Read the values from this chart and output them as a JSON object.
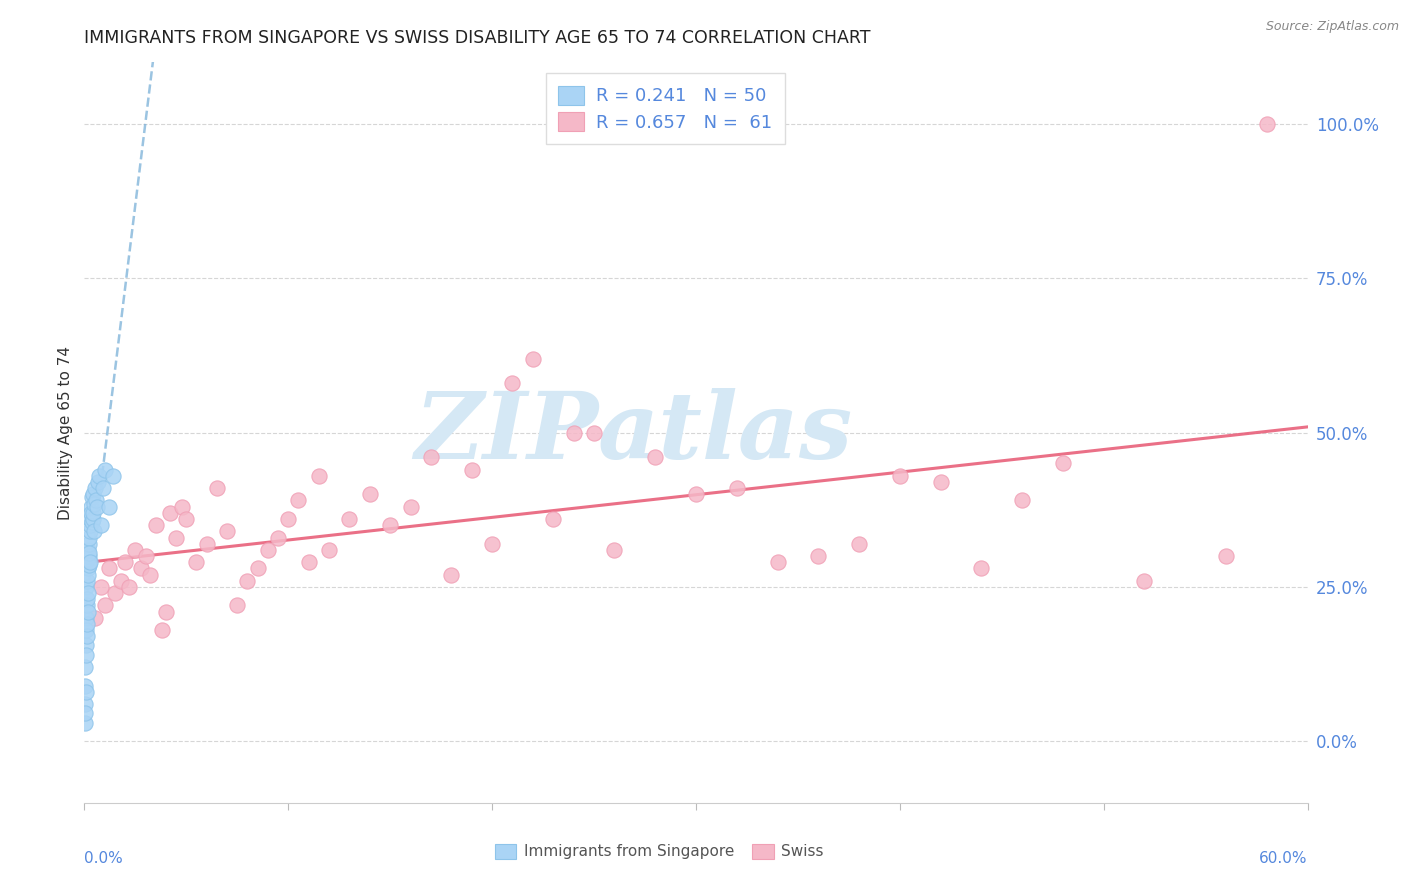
{
  "title": "IMMIGRANTS FROM SINGAPORE VS SWISS DISABILITY AGE 65 TO 74 CORRELATION CHART",
  "source": "Source: ZipAtlas.com",
  "legend_label1": "Immigrants from Singapore",
  "legend_label2": "Swiss",
  "R1": 0.241,
  "N1": 50,
  "R2": 0.657,
  "N2": 61,
  "color1": "#8ec4ea",
  "color1_fill": "#aad4f5",
  "color2": "#f0a0b5",
  "color2_fill": "#f5b8c8",
  "trendline1_color": "#7ab0d8",
  "trendline2_color": "#e8607a",
  "axis_label_color": "#5588dd",
  "right_ytick_color": "#5588dd",
  "right_yticks": [
    0.0,
    0.25,
    0.5,
    0.75,
    1.0
  ],
  "right_ytick_labels": [
    "0.0%",
    "25.0%",
    "50.0%",
    "75.0%",
    "100.0%"
  ],
  "xlim": [
    0.0,
    0.6
  ],
  "ylim": [
    -0.1,
    1.1
  ],
  "watermark_color": "#d5e8f5",
  "sg_x": [
    0.0003,
    0.0003,
    0.0004,
    0.0005,
    0.0005,
    0.0006,
    0.0007,
    0.0008,
    0.0009,
    0.001,
    0.001,
    0.0011,
    0.0012,
    0.0013,
    0.0014,
    0.0015,
    0.0016,
    0.0016,
    0.0017,
    0.0018,
    0.0019,
    0.002,
    0.0021,
    0.0022,
    0.0023,
    0.0024,
    0.0025,
    0.0026,
    0.0027,
    0.0028,
    0.003,
    0.0032,
    0.0034,
    0.0036,
    0.0038,
    0.004,
    0.0042,
    0.0044,
    0.0046,
    0.0048,
    0.005,
    0.0055,
    0.006,
    0.0065,
    0.007,
    0.008,
    0.009,
    0.01,
    0.012,
    0.014
  ],
  "sg_y": [
    0.03,
    0.06,
    0.09,
    0.045,
    0.12,
    0.155,
    0.08,
    0.2,
    0.14,
    0.25,
    0.18,
    0.17,
    0.22,
    0.23,
    0.19,
    0.26,
    0.24,
    0.21,
    0.28,
    0.27,
    0.295,
    0.31,
    0.3,
    0.285,
    0.32,
    0.33,
    0.305,
    0.34,
    0.35,
    0.36,
    0.29,
    0.38,
    0.37,
    0.355,
    0.395,
    0.36,
    0.4,
    0.37,
    0.385,
    0.34,
    0.41,
    0.39,
    0.38,
    0.42,
    0.43,
    0.35,
    0.41,
    0.44,
    0.38,
    0.43
  ],
  "sw_x": [
    0.005,
    0.008,
    0.01,
    0.012,
    0.015,
    0.018,
    0.02,
    0.022,
    0.025,
    0.028,
    0.03,
    0.032,
    0.035,
    0.038,
    0.04,
    0.042,
    0.045,
    0.048,
    0.05,
    0.055,
    0.06,
    0.065,
    0.07,
    0.075,
    0.08,
    0.085,
    0.09,
    0.095,
    0.1,
    0.105,
    0.11,
    0.115,
    0.12,
    0.13,
    0.14,
    0.15,
    0.16,
    0.17,
    0.18,
    0.19,
    0.2,
    0.21,
    0.22,
    0.23,
    0.24,
    0.25,
    0.26,
    0.28,
    0.3,
    0.32,
    0.34,
    0.36,
    0.38,
    0.4,
    0.42,
    0.44,
    0.46,
    0.48,
    0.52,
    0.56,
    0.58
  ],
  "sw_y": [
    0.2,
    0.25,
    0.22,
    0.28,
    0.24,
    0.26,
    0.29,
    0.25,
    0.31,
    0.28,
    0.3,
    0.27,
    0.35,
    0.18,
    0.21,
    0.37,
    0.33,
    0.38,
    0.36,
    0.29,
    0.32,
    0.41,
    0.34,
    0.22,
    0.26,
    0.28,
    0.31,
    0.33,
    0.36,
    0.39,
    0.29,
    0.43,
    0.31,
    0.36,
    0.4,
    0.35,
    0.38,
    0.46,
    0.27,
    0.44,
    0.32,
    0.58,
    0.62,
    0.36,
    0.5,
    0.5,
    0.31,
    0.46,
    0.4,
    0.41,
    0.29,
    0.3,
    0.32,
    0.43,
    0.42,
    0.28,
    0.39,
    0.45,
    0.26,
    0.3,
    1.0
  ]
}
